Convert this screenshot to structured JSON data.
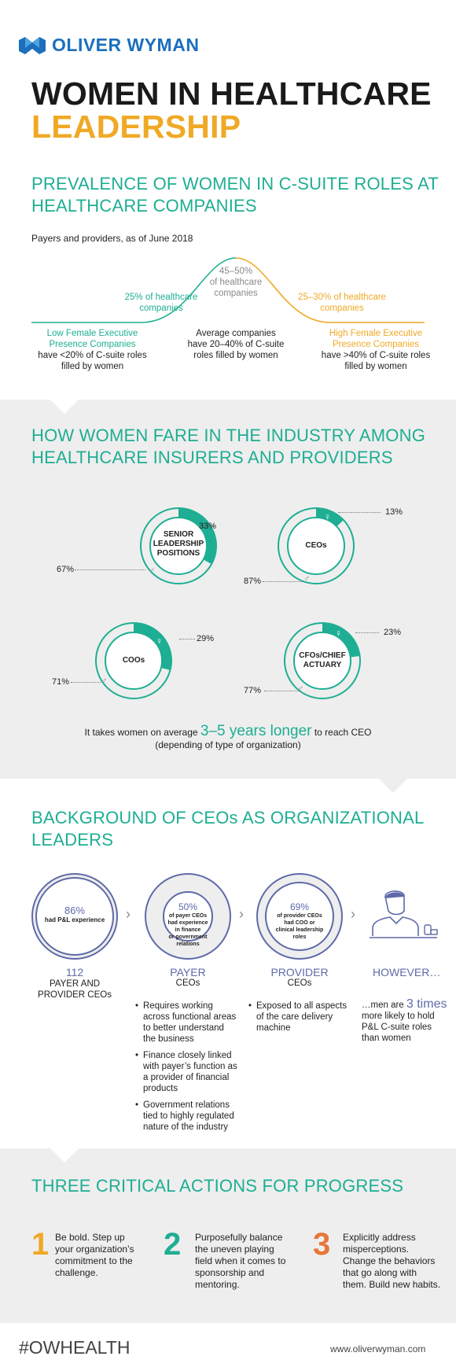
{
  "header": {
    "brand": "OLIVER WYMAN",
    "title_line1": "WOMEN IN HEALTHCARE",
    "title_line2": "LEADERSHIP"
  },
  "prevalence": {
    "heading_line1": "PREVALENCE OF WOMEN IN C-SUITE ROLES AT",
    "heading_line2": "HEALTHCARE COMPANIES",
    "subtitle": "Payers and providers, as of June 2018",
    "peak_pct": "45–50%",
    "peak_label1": "of healthcare",
    "peak_label2": "companies",
    "left_pct": "25% of healthcare",
    "left_label": "companies",
    "right_pct": "25–30% of healthcare",
    "right_label": "companies",
    "low_title1": "Low Female Executive",
    "low_title2": "Presence Companies",
    "low_desc1": "have <20% of C-suite roles",
    "low_desc2": "filled by women",
    "avg_title": "Average companies",
    "avg_desc1": "have 20–40% of C-suite",
    "avg_desc2": "roles filled by women",
    "high_title1": "High Female Executive",
    "high_title2": "Presence Companies",
    "high_desc1": "have >40% of C-suite roles",
    "high_desc2": "filled by women"
  },
  "industry": {
    "heading_line1": "HOW WOMEN FARE IN THE INDUSTRY AMONG",
    "heading_line2": "HEALTHCARE INSURERS AND PROVIDERS",
    "donuts": [
      {
        "label_lines": [
          "SENIOR",
          "LEADERSHIP",
          "POSITIONS"
        ],
        "women": 33,
        "women_label": "33%",
        "men_label": "67%"
      },
      {
        "label_lines": [
          "CEOs"
        ],
        "women": 13,
        "women_label": "13%",
        "men_label": "87%"
      },
      {
        "label_lines": [
          "COOs"
        ],
        "women": 29,
        "women_label": "29%",
        "men_label": "71%"
      },
      {
        "label_lines": [
          "CFOs/CHIEF",
          "ACTUARY"
        ],
        "women": 23,
        "women_label": "23%",
        "men_label": "77%"
      }
    ],
    "note_prefix": "It takes women on average",
    "note_highlight": "3–5 years longer",
    "note_suffix": "to reach CEO",
    "note_line2": "(depending of type of organization)"
  },
  "background": {
    "heading_line1": "BACKGROUND OF CEOs AS ORGANIZATIONAL",
    "heading_line2": "LEADERS",
    "col1_pct": "86%",
    "col1_inner": "had P&L experience",
    "col1_number": "112",
    "col1_label1": "PAYER AND",
    "col1_label2": "PROVIDER CEOs",
    "col2_pct": "50%",
    "col2_inner": [
      "of payer CEOs",
      "had experience",
      "in finance",
      "or government",
      "relations"
    ],
    "col2_title": "PAYER",
    "col2_sub": "CEOs",
    "col2_bullets": [
      "Requires working across functional areas to better understand the business",
      "Finance closely linked with payer’s function as a provider of financial products",
      "Government relations tied to highly regulated nature of the industry"
    ],
    "col3_pct": "69%",
    "col3_inner": [
      "of provider CEOs",
      "had COO or",
      "clinical leadership",
      "roles"
    ],
    "col3_title": "PROVIDER",
    "col3_sub": "CEOs",
    "col3_bullets": [
      "Exposed to all aspects of the care delivery machine"
    ],
    "col4_title": "HOWEVER…",
    "col4_prefix": "…men are",
    "col4_highlight": "3 times",
    "col4_rest": "more likely to hold P&L C-suite roles than women"
  },
  "actions": {
    "heading": "THREE CRITICAL ACTIONS FOR PROGRESS",
    "items": [
      {
        "num": "1",
        "text": "Be bold. Step up your organization’s commitment to the challenge."
      },
      {
        "num": "2",
        "text": "Purposefully balance the uneven playing field when it comes to sponsorship and mentoring."
      },
      {
        "num": "3",
        "text": "Explicitly address misperceptions. Change the behaviors that go along with them. Build new habits."
      }
    ]
  },
  "footer": {
    "hashtag": "#OWHEALTH",
    "url": "www.oliverwyman.com"
  },
  "colors": {
    "teal": "#1eae93",
    "orange": "#f0a926",
    "blue": "#1b6fbd",
    "purple": "#5f6aa8",
    "gray": "#8a8a8a"
  }
}
